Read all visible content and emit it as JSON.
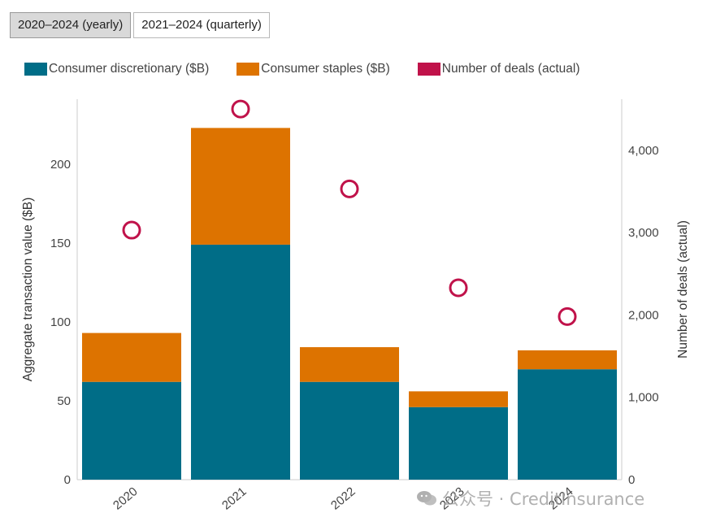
{
  "tabs": [
    {
      "label": "2020–2024 (yearly)",
      "active": true
    },
    {
      "label": "2021–2024 (quarterly)",
      "active": false
    }
  ],
  "legend": [
    {
      "label": "Consumer discretionary ($B)",
      "color": "#006d87",
      "icon": "square"
    },
    {
      "label": "Consumer staples ($B)",
      "color": "#dd7300",
      "icon": "square"
    },
    {
      "label": "Number of deals (actual)",
      "color": "#c0124a",
      "icon": "square"
    }
  ],
  "watermark": {
    "text": "公众号 · CreditInsurance",
    "icon": "wechat-icon"
  },
  "chart_data": {
    "type": "bar",
    "stacked": true,
    "categories": [
      "2020",
      "2021",
      "2022",
      "2023",
      "2024"
    ],
    "series": [
      {
        "name": "Consumer discretionary ($B)",
        "color": "#006d87",
        "values": [
          62,
          149,
          62,
          46,
          70
        ]
      },
      {
        "name": "Consumer staples ($B)",
        "color": "#dd7300",
        "values": [
          31,
          74,
          22,
          10,
          12
        ]
      }
    ],
    "secondary_series": {
      "name": "Number of deals (actual)",
      "type": "scatter",
      "marker": "circle-open",
      "color": "#c0124a",
      "values": [
        3030,
        4500,
        3530,
        2330,
        1980
      ]
    },
    "ylabel": "Aggregate transaction value ($B)",
    "y2label": "Number of deals (actual)",
    "ylim": [
      0,
      240
    ],
    "y2lim": [
      0,
      4600
    ],
    "yticks": [
      "0",
      "50",
      "100",
      "150",
      "200"
    ],
    "y2ticks": [
      "0",
      "1,000",
      "2,000",
      "3,000",
      "4,000"
    ],
    "grid": false
  }
}
